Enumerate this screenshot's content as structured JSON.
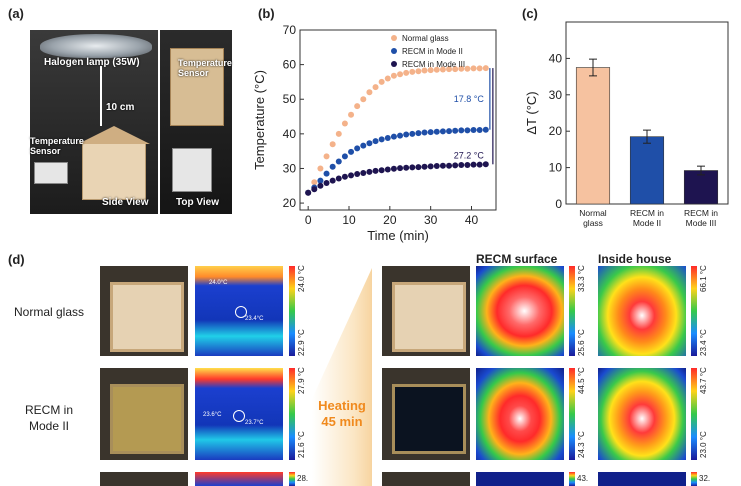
{
  "panels": {
    "a": {
      "label": "(a)",
      "lamp": "Halogen lamp (35W)",
      "distance": "10 cm",
      "temp_sensor_side": "Temperature\nSensor",
      "temp_sensor_top": "Temperature\nSensor",
      "side_view": "Side View",
      "top_view": "Top View"
    },
    "b": {
      "label": "(b)"
    },
    "c": {
      "label": "(c)"
    },
    "d": {
      "label": "(d)",
      "col_recm_surface": "RECM surface",
      "col_inside_house": "Inside house",
      "heating_line1": "Heating",
      "heating_line2": "45 min",
      "rows": [
        {
          "label": "Normal glass",
          "bar1_max": "24.0 °C",
          "bar1_min": "22.9 °C",
          "bar2_max": "33.3 °C",
          "bar2_min": "25.6 °C",
          "bar3_max": "66.1 °C",
          "bar3_min": "23.4 °C",
          "spot1": "24.0°C",
          "spot2": "23.4°C"
        },
        {
          "label": "RECM in\nMode II",
          "bar1_max": "27.9 °C",
          "bar1_min": "21.6 °C",
          "bar2_max": "44.5 °C",
          "bar2_min": "24.3 °C",
          "bar3_max": "43.7 °C",
          "bar3_min": "23.0 °C",
          "spot1": "23.6°C",
          "spot2": "23.7°C"
        },
        {
          "label": "",
          "bar1_max": "28.",
          "bar2_max": "43.",
          "bar3_max": "32."
        }
      ]
    }
  },
  "chart_data": [
    {
      "type": "scatter",
      "xlabel": "Time (min)",
      "ylabel": "Temperature (°C)",
      "xlim": [
        -2,
        46
      ],
      "ylim": [
        18,
        70
      ],
      "xticks": [
        0,
        10,
        20,
        30,
        40
      ],
      "yticks": [
        20,
        30,
        40,
        50,
        60,
        70
      ],
      "legend_position": "top-right",
      "series": [
        {
          "name": "Normal glass",
          "color": "#f4b28a",
          "x": [
            0,
            1.5,
            3,
            4.5,
            6,
            7.5,
            9,
            10.5,
            12,
            13.5,
            15,
            16.5,
            18,
            19.5,
            21,
            22.5,
            24,
            25.5,
            27,
            28.5,
            30,
            31.5,
            33,
            34.5,
            36,
            37.5,
            39,
            40.5,
            42,
            43.5
          ],
          "values": [
            23,
            26,
            30,
            33.5,
            37,
            40,
            43,
            45.5,
            48,
            50,
            52,
            53.5,
            55,
            56,
            56.8,
            57.2,
            57.6,
            57.9,
            58.1,
            58.3,
            58.4,
            58.5,
            58.6,
            58.7,
            58.7,
            58.8,
            58.8,
            58.9,
            58.9,
            59
          ]
        },
        {
          "name": "RECM in Mode II",
          "color": "#1f4fa8",
          "x": [
            0,
            1.5,
            3,
            4.5,
            6,
            7.5,
            9,
            10.5,
            12,
            13.5,
            15,
            16.5,
            18,
            19.5,
            21,
            22.5,
            24,
            25.5,
            27,
            28.5,
            30,
            31.5,
            33,
            34.5,
            36,
            37.5,
            39,
            40.5,
            42,
            43.5
          ],
          "values": [
            23,
            24.5,
            26.5,
            28.5,
            30.5,
            32,
            33.5,
            34.8,
            35.8,
            36.6,
            37.3,
            37.9,
            38.4,
            38.8,
            39.2,
            39.5,
            39.8,
            40,
            40.2,
            40.4,
            40.5,
            40.6,
            40.7,
            40.8,
            40.9,
            41,
            41,
            41.1,
            41.1,
            41.2
          ]
        },
        {
          "name": "RECM in Mode III",
          "color": "#1e1450",
          "x": [
            0,
            1.5,
            3,
            4.5,
            6,
            7.5,
            9,
            10.5,
            12,
            13.5,
            15,
            16.5,
            18,
            19.5,
            21,
            22.5,
            24,
            25.5,
            27,
            28.5,
            30,
            31.5,
            33,
            34.5,
            36,
            37.5,
            39,
            40.5,
            42,
            43.5
          ],
          "values": [
            23,
            24,
            25,
            25.8,
            26.5,
            27.1,
            27.6,
            28,
            28.4,
            28.7,
            29,
            29.3,
            29.5,
            29.7,
            29.9,
            30.1,
            30.2,
            30.3,
            30.4,
            30.5,
            30.6,
            30.7,
            30.8,
            30.8,
            30.9,
            31,
            31,
            31.1,
            31.1,
            31.2
          ]
        }
      ],
      "annotations": [
        "17.8 °C",
        "27.2 °C"
      ]
    },
    {
      "type": "bar",
      "ylabel": "ΔT (°C)",
      "ylim": [
        0,
        50
      ],
      "yticks": [
        0,
        10,
        20,
        30,
        40
      ],
      "categories": [
        "Normal\nglass",
        "RECM in\nMode II",
        "RECM in\nMode III"
      ],
      "values": [
        37.5,
        18.5,
        9.2
      ],
      "errors": [
        2.3,
        1.8,
        1.2
      ],
      "colors": [
        "#f6c2a0",
        "#1f4fa8",
        "#1e1450"
      ]
    }
  ]
}
